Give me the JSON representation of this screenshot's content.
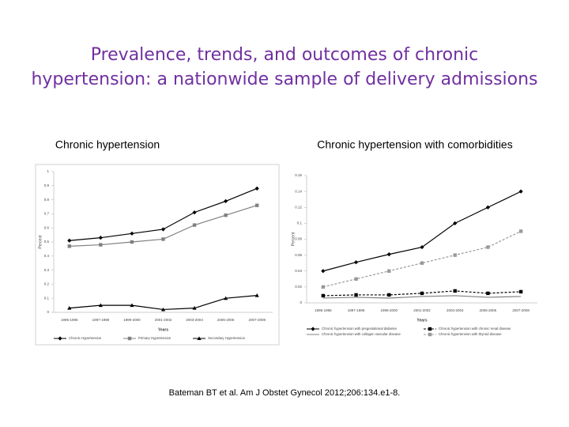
{
  "slide": {
    "title": [
      "Prevalence, trends, and outcomes of chronic",
      "hypertension: a nationwide sample of delivery admissions"
    ],
    "captions": [
      "Chronic hypertension",
      "Chronic hypertension with comorbidities"
    ],
    "citation": "Bateman BT et al. Am J Obstet Gynecol 2012;206:134.e1-8."
  },
  "chart_data": [
    {
      "type": "line",
      "xlabel": "Years",
      "ylabel": "Percent",
      "categories": [
        "1995-1996",
        "1997-1998",
        "1999-2000",
        "2001-2002",
        "2003-2004",
        "2005-2006",
        "2007-2008"
      ],
      "ylim": [
        0,
        1
      ],
      "yticks": [
        0,
        0.1,
        0.2,
        0.3,
        0.4,
        0.5,
        0.6,
        0.7,
        0.8,
        0.9,
        1
      ],
      "series": [
        {
          "name": "Chronic Hypertension",
          "color": "#000000",
          "marker": "diamond",
          "dash": false,
          "values": [
            0.51,
            0.53,
            0.56,
            0.59,
            0.71,
            0.79,
            0.88
          ]
        },
        {
          "name": "Primary Hypertension",
          "color": "#808080",
          "marker": "square",
          "dash": false,
          "values": [
            0.47,
            0.48,
            0.5,
            0.52,
            0.62,
            0.69,
            0.76
          ]
        },
        {
          "name": "Secondary Hypertension",
          "color": "#000000",
          "marker": "triangle",
          "dash": false,
          "values": [
            0.03,
            0.05,
            0.05,
            0.02,
            0.03,
            0.1,
            0.12
          ]
        }
      ]
    },
    {
      "type": "line",
      "xlabel": "Years",
      "ylabel": "Percent",
      "categories": [
        "1995-1996",
        "1997-1998",
        "1999-2000",
        "2001-2002",
        "2003-2004",
        "2005-2006",
        "2007-2008"
      ],
      "ylim": [
        0,
        0.16
      ],
      "yticks": [
        0,
        0.02,
        0.04,
        0.06,
        0.08,
        0.1,
        0.12,
        0.14,
        0.16
      ],
      "series": [
        {
          "name": "Chronic hypertension with pregestational diabetes",
          "color": "#000000",
          "marker": "diamond",
          "dash": false,
          "values": [
            0.04,
            0.051,
            0.061,
            0.07,
            0.1,
            0.12,
            0.14
          ]
        },
        {
          "name": "Chronic hypertension with chronic renal disease",
          "color": "#000000",
          "marker": "square",
          "dash": true,
          "values": [
            0.009,
            0.01,
            0.01,
            0.012,
            0.015,
            0.012,
            0.014
          ]
        },
        {
          "name": "Chronic hypertension with collagen vascular disease",
          "color": "#808080",
          "marker": "none",
          "dash": false,
          "values": [
            0.006,
            0.007,
            0.006,
            0.008,
            0.009,
            0.007,
            0.008
          ]
        },
        {
          "name": "Chronic hypertension with thyroid disease",
          "color": "#999999",
          "marker": "square",
          "dash": true,
          "values": [
            0.02,
            0.03,
            0.04,
            0.05,
            0.06,
            0.07,
            0.09
          ]
        }
      ]
    }
  ]
}
